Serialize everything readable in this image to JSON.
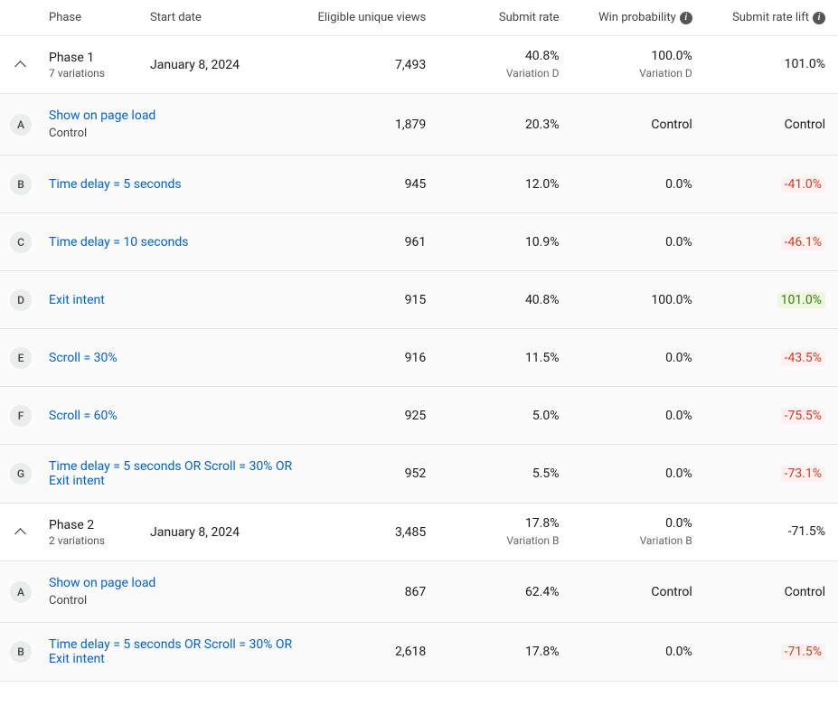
{
  "columns": {
    "phase": "Phase",
    "start_date": "Start date",
    "eligible": "Eligible unique views",
    "submit_rate": "Submit rate",
    "win_prob": "Win probability",
    "submit_rate_lift": "Submit rate lift"
  },
  "info_glyph": "i",
  "phases": [
    {
      "name": "Phase 1",
      "sub": "7 variations",
      "start_date": "January 8, 2024",
      "eligible": "7,493",
      "submit_rate": "40.8%",
      "submit_rate_sub": "Variation D",
      "win_prob": "100.0%",
      "win_prob_sub": "Variation D",
      "lift": "101.0%",
      "lift_class": "",
      "variations": [
        {
          "badge": "A",
          "name": "Show on page load",
          "sub": "Control",
          "eligible": "1,879",
          "submit_rate": "20.3%",
          "win_prob": "Control",
          "lift": "Control",
          "lift_class": ""
        },
        {
          "badge": "B",
          "name": "Time delay = 5 seconds",
          "sub": "",
          "eligible": "945",
          "submit_rate": "12.0%",
          "win_prob": "0.0%",
          "lift": "-41.0%",
          "lift_class": "lift-neg"
        },
        {
          "badge": "C",
          "name": "Time delay = 10 seconds",
          "sub": "",
          "eligible": "961",
          "submit_rate": "10.9%",
          "win_prob": "0.0%",
          "lift": "-46.1%",
          "lift_class": "lift-neg"
        },
        {
          "badge": "D",
          "name": "Exit intent",
          "sub": "",
          "eligible": "915",
          "submit_rate": "40.8%",
          "win_prob": "100.0%",
          "lift": "101.0%",
          "lift_class": "lift-pos"
        },
        {
          "badge": "E",
          "name": "Scroll = 30%",
          "sub": "",
          "eligible": "916",
          "submit_rate": "11.5%",
          "win_prob": "0.0%",
          "lift": "-43.5%",
          "lift_class": "lift-neg"
        },
        {
          "badge": "F",
          "name": "Scroll = 60%",
          "sub": "",
          "eligible": "925",
          "submit_rate": "5.0%",
          "win_prob": "0.0%",
          "lift": "-75.5%",
          "lift_class": "lift-neg"
        },
        {
          "badge": "G",
          "name": "Time delay = 5 seconds OR Scroll = 30% OR Exit intent",
          "sub": "",
          "eligible": "952",
          "submit_rate": "5.5%",
          "win_prob": "0.0%",
          "lift": "-73.1%",
          "lift_class": "lift-neg"
        }
      ]
    },
    {
      "name": "Phase 2",
      "sub": "2 variations",
      "start_date": "January 8, 2024",
      "eligible": "3,485",
      "submit_rate": "17.8%",
      "submit_rate_sub": "Variation B",
      "win_prob": "0.0%",
      "win_prob_sub": "Variation B",
      "lift": "-71.5%",
      "lift_class": "",
      "variations": [
        {
          "badge": "A",
          "name": "Show on page load",
          "sub": "Control",
          "eligible": "867",
          "submit_rate": "62.4%",
          "win_prob": "Control",
          "lift": "Control",
          "lift_class": ""
        },
        {
          "badge": "B",
          "name": "Time delay = 5 seconds OR Scroll = 30% OR Exit intent",
          "sub": "",
          "eligible": "2,618",
          "submit_rate": "17.8%",
          "win_prob": "0.0%",
          "lift": "-71.5%",
          "lift_class": "lift-neg"
        }
      ]
    }
  ]
}
